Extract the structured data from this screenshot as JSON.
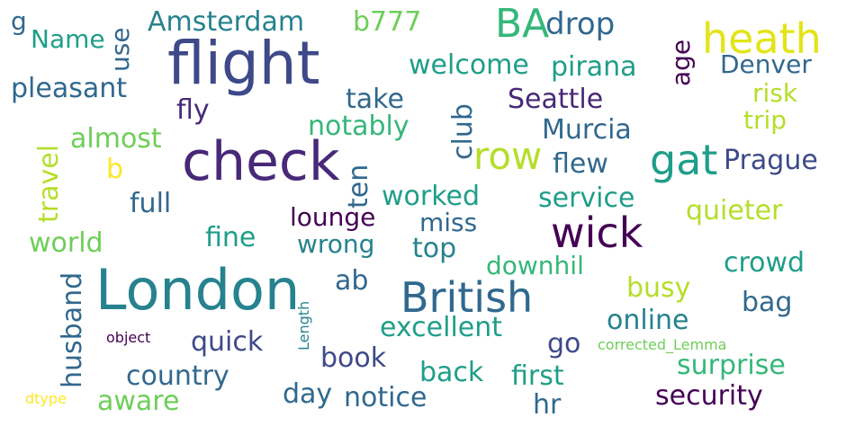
{
  "colors": {
    "background": "#ffffff",
    "dark_purple": "#440154",
    "purple": "#482878",
    "indigo": "#3e4989",
    "blue": "#31688e",
    "teal_blue": "#26828e",
    "teal": "#1f9e89",
    "green": "#35b779",
    "light_green": "#6ece58",
    "lime": "#b5de2b",
    "yellow": "#fde725"
  },
  "words": [
    {
      "text": "flight"
    },
    {
      "text": "London"
    },
    {
      "text": "check"
    },
    {
      "text": "British"
    },
    {
      "text": "wick"
    },
    {
      "text": "heath"
    },
    {
      "text": "gat"
    },
    {
      "text": "BA"
    },
    {
      "text": "row"
    },
    {
      "text": "Amsterdam"
    },
    {
      "text": "b777"
    },
    {
      "text": "drop"
    },
    {
      "text": "Name"
    },
    {
      "text": "g"
    },
    {
      "text": "use"
    },
    {
      "text": "welcome"
    },
    {
      "text": "pirana"
    },
    {
      "text": "age"
    },
    {
      "text": "Denver"
    },
    {
      "text": "pleasant"
    },
    {
      "text": "take"
    },
    {
      "text": "club"
    },
    {
      "text": "Seattle"
    },
    {
      "text": "risk"
    },
    {
      "text": "fly"
    },
    {
      "text": "notably"
    },
    {
      "text": "trip"
    },
    {
      "text": "travel"
    },
    {
      "text": "almost"
    },
    {
      "text": "Murcia"
    },
    {
      "text": "ten"
    },
    {
      "text": "b"
    },
    {
      "text": "flew"
    },
    {
      "text": "Prague"
    },
    {
      "text": "worked"
    },
    {
      "text": "service"
    },
    {
      "text": "full"
    },
    {
      "text": "lounge"
    },
    {
      "text": "miss"
    },
    {
      "text": "quieter"
    },
    {
      "text": "world"
    },
    {
      "text": "fine"
    },
    {
      "text": "wrong"
    },
    {
      "text": "top"
    },
    {
      "text": "downhil"
    },
    {
      "text": "crowd"
    },
    {
      "text": "husband"
    },
    {
      "text": "ab"
    },
    {
      "text": "busy"
    },
    {
      "text": "Length"
    },
    {
      "text": "bag"
    },
    {
      "text": "excellent"
    },
    {
      "text": "online"
    },
    {
      "text": "object"
    },
    {
      "text": "quick"
    },
    {
      "text": "go"
    },
    {
      "text": "corrected_Lemma"
    },
    {
      "text": "book"
    },
    {
      "text": "surprise"
    },
    {
      "text": "country"
    },
    {
      "text": "back"
    },
    {
      "text": "first"
    },
    {
      "text": "day"
    },
    {
      "text": "aware"
    },
    {
      "text": "notice"
    },
    {
      "text": "security"
    },
    {
      "text": "hr"
    },
    {
      "text": "dtype"
    }
  ]
}
